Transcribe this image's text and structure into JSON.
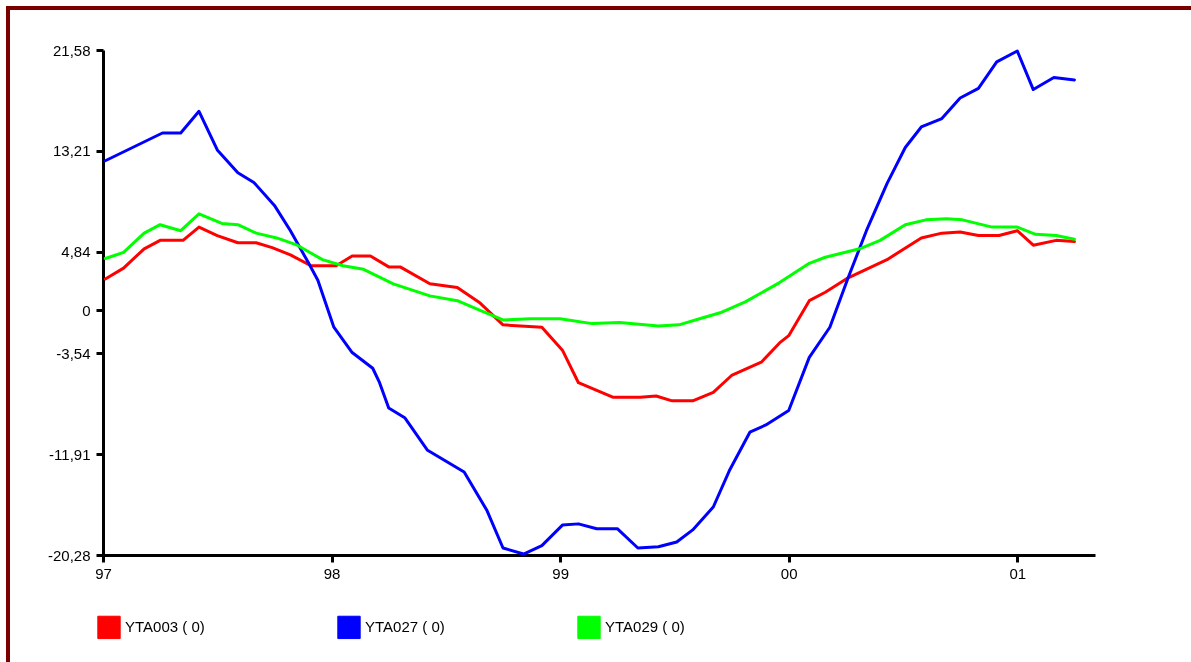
{
  "chart_data": {
    "type": "line",
    "legend": "bottom",
    "marker": "none",
    "line_style": "solid",
    "grid": false,
    "xlim": [
      1997,
      2001.34
    ],
    "xticks": [
      {
        "value": 1997,
        "label": "97"
      },
      {
        "value": 1998,
        "label": "98"
      },
      {
        "value": 1999,
        "label": "99"
      },
      {
        "value": 2000,
        "label": "00"
      },
      {
        "value": 2001,
        "label": "01"
      }
    ],
    "ylim": [
      -20.28,
      21.58
    ],
    "yticks": [
      {
        "value": -20.28,
        "label": "-20,28"
      },
      {
        "value": -11.91,
        "label": "-11,91"
      },
      {
        "value": -3.54,
        "label": "-3,54"
      },
      0,
      {
        "value": 4.84,
        "label": "4,84"
      },
      {
        "value": 13.21,
        "label": "13,21"
      },
      {
        "value": 21.58,
        "label": "21,58"
      }
    ],
    "series": [
      {
        "name": "YTA003 (  0)",
        "color": "#ff0000",
        "x": [
          1997.01,
          1997.09,
          1997.18,
          1997.25,
          1997.35,
          1997.42,
          1997.5,
          1997.59,
          1997.67,
          1997.74,
          1997.82,
          1997.91,
          1998.02,
          1998.09,
          1998.17,
          1998.25,
          1998.3,
          1998.43,
          1998.55,
          1998.65,
          1998.75,
          1998.92,
          1999.01,
          1999.08,
          1999.23,
          1999.35,
          1999.42,
          1999.49,
          1999.58,
          1999.67,
          1999.75,
          1999.88,
          1999.96,
          2000,
          2000.09,
          2000.16,
          2000.26,
          2000.43,
          2000.58,
          2000.67,
          2000.75,
          2000.83,
          2000.92,
          2001,
          2001.07,
          2001.17,
          2001.25
        ],
        "values": [
          2.6,
          3.5,
          5.1,
          5.8,
          5.8,
          6.9,
          6.2,
          5.6,
          5.6,
          5.2,
          4.6,
          3.7,
          3.7,
          4.5,
          4.5,
          3.6,
          3.6,
          2.2,
          1.9,
          0.6,
          -1.2,
          -1.4,
          -3.3,
          -6.0,
          -7.2,
          -7.2,
          -7.1,
          -7.5,
          -7.5,
          -6.8,
          -5.4,
          -4.3,
          -2.7,
          -2.1,
          0.8,
          1.5,
          2.7,
          4.2,
          6.0,
          6.4,
          6.5,
          6.2,
          6.2,
          6.6,
          5.4,
          5.8,
          5.7
        ]
      },
      {
        "name": "YTA027 (  0)",
        "color": "#0000ff",
        "x": [
          1997.01,
          1997.26,
          1997.34,
          1997.42,
          1997.5,
          1997.59,
          1997.66,
          1997.75,
          1997.82,
          1997.9,
          1997.94,
          1998.01,
          1998.09,
          1998.18,
          1998.21,
          1998.25,
          1998.32,
          1998.42,
          1998.58,
          1998.68,
          1998.75,
          1998.84,
          1998.92,
          1999.01,
          1999.08,
          1999.16,
          1999.25,
          1999.34,
          1999.43,
          1999.51,
          1999.58,
          1999.67,
          1999.74,
          1999.83,
          1999.9,
          2000,
          2000.09,
          2000.18,
          2000.26,
          2000.34,
          2000.43,
          2000.51,
          2000.58,
          2000.67,
          2000.75,
          2000.83,
          2000.91,
          2001,
          2001.07,
          2001.16,
          2001.25
        ],
        "values": [
          12.4,
          14.7,
          14.7,
          16.5,
          13.3,
          11.4,
          10.6,
          8.7,
          6.6,
          3.9,
          2.5,
          -1.4,
          -3.5,
          -4.8,
          -6.0,
          -8.1,
          -8.9,
          -11.6,
          -13.4,
          -16.6,
          -19.7,
          -20.2,
          -19.5,
          -17.8,
          -17.7,
          -18.1,
          -18.1,
          -19.7,
          -19.6,
          -19.2,
          -18.2,
          -16.3,
          -13.3,
          -10.1,
          -9.5,
          -8.3,
          -3.9,
          -1.4,
          2.7,
          6.6,
          10.5,
          13.5,
          15.2,
          15.9,
          17.6,
          18.4,
          20.6,
          21.5,
          18.3,
          19.3,
          19.1
        ]
      },
      {
        "name": "YTA029 (  0)",
        "color": "#00ff00",
        "x": [
          1997.01,
          1997.09,
          1997.18,
          1997.25,
          1997.34,
          1997.42,
          1997.52,
          1997.59,
          1997.67,
          1997.76,
          1997.85,
          1997.96,
          1998.05,
          1998.14,
          1998.27,
          1998.43,
          1998.55,
          1998.65,
          1998.75,
          1998.87,
          1999,
          1999.14,
          1999.26,
          1999.43,
          1999.52,
          1999.61,
          1999.7,
          1999.81,
          1999.96,
          2000.09,
          2000.16,
          2000.31,
          2000.4,
          2000.51,
          2000.6,
          2000.69,
          2000.76,
          2000.89,
          2001,
          2001.08,
          2001.17,
          2001.25
        ],
        "values": [
          4.3,
          4.8,
          6.4,
          7.1,
          6.6,
          8.0,
          7.2,
          7.1,
          6.4,
          6.0,
          5.4,
          4.2,
          3.7,
          3.4,
          2.2,
          1.2,
          0.8,
          0.0,
          -0.8,
          -0.7,
          -0.7,
          -1.1,
          -1.0,
          -1.3,
          -1.2,
          -0.7,
          -0.2,
          0.7,
          2.3,
          3.9,
          4.4,
          5.1,
          5.8,
          7.1,
          7.5,
          7.6,
          7.5,
          6.9,
          6.9,
          6.3,
          6.2,
          5.9
        ]
      }
    ]
  }
}
